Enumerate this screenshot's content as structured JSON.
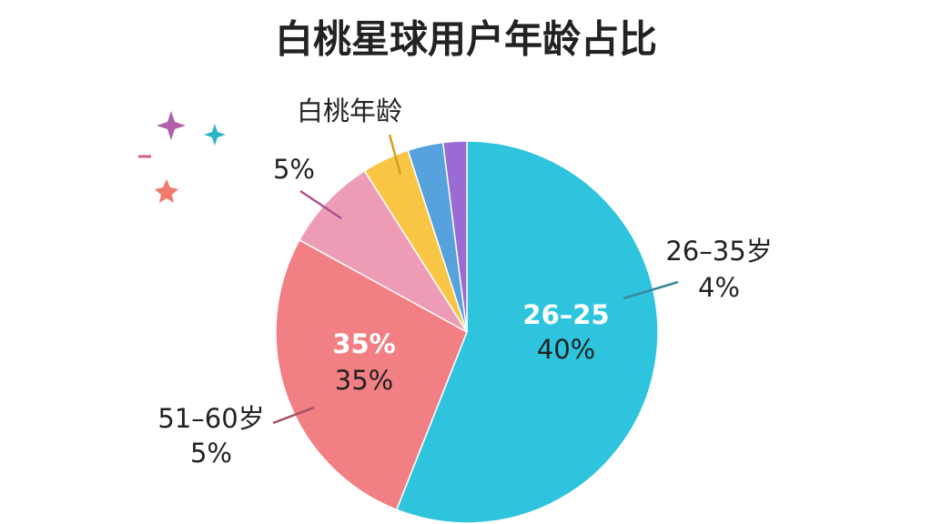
{
  "chart_data": {
    "type": "pie",
    "title": "白桃星球用户年龄占比",
    "values": [
      56,
      27,
      8,
      4,
      3,
      2
    ],
    "colors": [
      "#2ec4de",
      "#f17f83",
      "#ee9cb5",
      "#f8c544",
      "#55a2dd",
      "#9b6bd4"
    ],
    "annotations": [
      "26–25",
      "40%",
      "35%",
      "35%",
      "26–35岁",
      "4%",
      "51–60岁",
      "5%",
      "5%",
      "白桃年龄"
    ]
  }
}
